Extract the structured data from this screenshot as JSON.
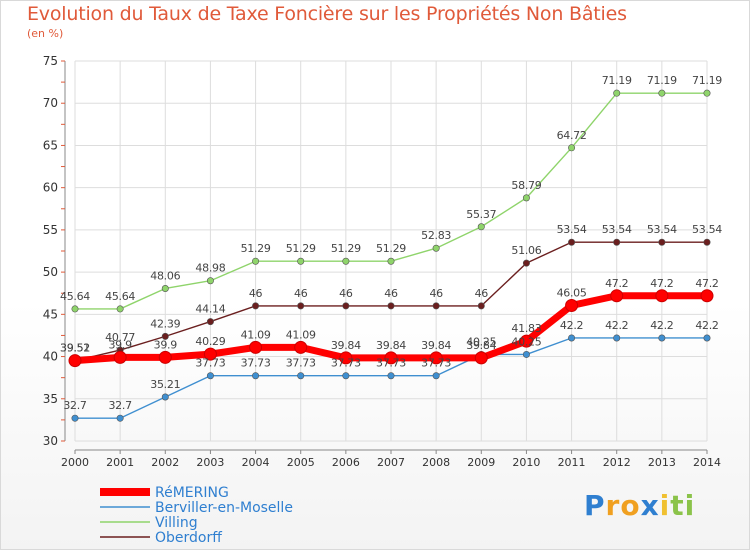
{
  "chart_data": {
    "type": "line",
    "title": "Evolution du Taux de Taxe Foncière sur les Propriétés Non Bâties",
    "ylabel": "(en %)",
    "xlabel": "",
    "ylim": [
      30,
      75
    ],
    "yticks": [
      30,
      35,
      40,
      45,
      50,
      55,
      60,
      65,
      70,
      75
    ],
    "grid": true,
    "legend_position": "bottom-left",
    "categories": [
      "2000",
      "2001",
      "2002",
      "2003",
      "2004",
      "2005",
      "2006",
      "2007",
      "2008",
      "2009",
      "2010",
      "2011",
      "2012",
      "2013",
      "2014"
    ],
    "series": [
      {
        "name": "Villing",
        "color": "#8fd46b",
        "values": [
          45.64,
          45.64,
          48.06,
          48.98,
          51.29,
          51.29,
          51.29,
          51.29,
          52.83,
          55.37,
          58.79,
          64.72,
          71.19,
          71.19,
          71.19
        ],
        "labels": [
          "45.64",
          "45.64",
          "48.06",
          "48.98",
          "51.29",
          "51.29",
          "51.29",
          "51.29",
          "52.83",
          "55.37",
          "58.79",
          "64.72",
          "71.19",
          "71.19",
          "71.19"
        ]
      },
      {
        "name": "Oberdorff",
        "color": "#6b1f1f",
        "values": [
          39.51,
          40.77,
          42.39,
          44.14,
          46,
          46,
          46,
          46,
          46,
          46,
          51.06,
          53.54,
          53.54,
          53.54,
          53.54
        ],
        "labels": [
          "39.51",
          "40.77",
          "42.39",
          "44.14",
          "46",
          "46",
          "46",
          "46",
          "46",
          "46",
          "51.06",
          "53.54",
          "53.54",
          "53.54",
          "53.54"
        ]
      },
      {
        "name": "Berviller-en-Moselle",
        "color": "#3f8fd0",
        "values": [
          32.7,
          32.7,
          35.21,
          37.73,
          37.73,
          37.73,
          37.73,
          37.73,
          37.73,
          40.25,
          40.25,
          42.2,
          42.2,
          42.2,
          42.2
        ],
        "labels": [
          "32.7",
          "32.7",
          "35.21",
          "37.73",
          "37.73",
          "37.73",
          "37.73",
          "37.73",
          "37.73",
          "40.25",
          "40.25",
          "42.2",
          "42.2",
          "42.2",
          "42.2"
        ]
      },
      {
        "name": "RéMERING",
        "color": "#ff0000",
        "values": [
          39.52,
          39.9,
          39.9,
          40.29,
          41.09,
          41.09,
          39.84,
          39.84,
          39.84,
          39.84,
          41.83,
          46.05,
          47.2,
          47.2,
          47.2
        ],
        "labels": [
          "39.52",
          "39.9",
          "39.9",
          "40.29",
          "41.09",
          "41.09",
          "39.84",
          "39.84",
          "39.84",
          "39.84",
          "41.83",
          "46.05",
          "47.2",
          "47.2",
          "47.2"
        ]
      }
    ],
    "legend": [
      "RéMERING",
      "Berviller-en-Moselle",
      "Villing",
      "Oberdorff"
    ]
  },
  "brand": {
    "letters": [
      "P",
      "r",
      "o",
      "x",
      "i",
      "t",
      "i"
    ],
    "colors": [
      "#2f7fd0",
      "#f0a020",
      "#f0a020",
      "#2f7fd0",
      "#f0c030",
      "#8bc34a",
      "#8bc34a"
    ]
  }
}
